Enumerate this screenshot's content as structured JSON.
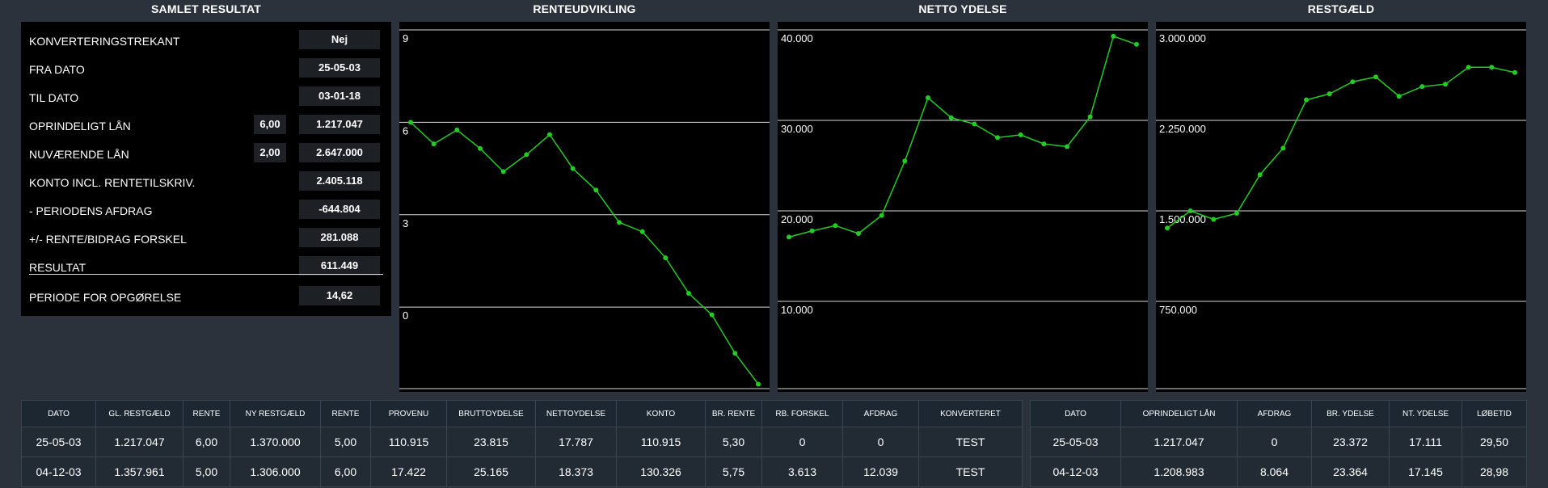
{
  "summary": {
    "title": "SAMLET RESULTAT",
    "rows": [
      {
        "label": "KONVERTERINGSTREKANT",
        "value": "Nej"
      },
      {
        "label": "FRA DATO",
        "value": "25-05-03"
      },
      {
        "label": "TIL DATO",
        "value": "03-01-18"
      },
      {
        "label": "OPRINDELIGT LÅN",
        "value": "1.217.047",
        "pct": "6,00"
      },
      {
        "label": "NUVÆRENDE LÅN",
        "value": "2.647.000",
        "pct": "2,00"
      },
      {
        "label": "KONTO INCL. RENTETILSKRIV.",
        "value": "2.405.118"
      },
      {
        "label": "- PERIODENS AFDRAG",
        "value": "-644.804"
      },
      {
        "label": "+/- RENTE/BIDRAG FORSKEL",
        "value": "281.088"
      },
      {
        "label": "RESULTAT",
        "value": "611.449"
      },
      {
        "label": "PERIODE FOR OPGØRELSE",
        "value": "14,62"
      }
    ]
  },
  "chart_data": [
    {
      "type": "line",
      "title": "RENTEUDVIKLING",
      "ylim": [
        -2.75,
        9
      ],
      "yticks": [
        {
          "v": 9,
          "label": "9"
        },
        {
          "v": 6,
          "label": "6"
        },
        {
          "v": 3,
          "label": "3"
        },
        {
          "v": 0,
          "label": "0"
        }
      ],
      "color": "#22cc22",
      "grid": true,
      "values": [
        6.0,
        5.3,
        5.75,
        5.15,
        4.4,
        4.95,
        5.6,
        4.5,
        3.8,
        2.75,
        2.45,
        1.6,
        0.45,
        -0.25,
        -1.5,
        -2.5
      ]
    },
    {
      "type": "line",
      "title": "NETTO YDELSE",
      "ylim": [
        0,
        40000
      ],
      "yticks": [
        {
          "v": 40000,
          "label": "40.000"
        },
        {
          "v": 30000,
          "label": "30.000"
        },
        {
          "v": 20000,
          "label": "20.000"
        },
        {
          "v": 10000,
          "label": "10.000"
        }
      ],
      "color": "#22cc22",
      "grid": true,
      "values": [
        17111,
        17787,
        18373,
        17500,
        19500,
        25500,
        32500,
        30300,
        29600,
        28100,
        28400,
        27400,
        27100,
        30400,
        39300,
        38400
      ]
    },
    {
      "type": "line",
      "title": "RESTGÆLD",
      "ylim": [
        0,
        3000000
      ],
      "yticks": [
        {
          "v": 3000000,
          "label": "3.000.000"
        },
        {
          "v": 2250000,
          "label": "2.250.000"
        },
        {
          "v": 1500000,
          "label": "1.500.000"
        },
        {
          "v": 750000,
          "label": "750.000"
        }
      ],
      "color": "#22cc22",
      "grid": true,
      "values": [
        1357961,
        1500000,
        1430000,
        1480000,
        1800000,
        2020000,
        2420000,
        2470000,
        2570000,
        2610000,
        2450000,
        2530000,
        2550000,
        2690000,
        2690000,
        2647000
      ]
    }
  ],
  "table1": {
    "headers": [
      "DATO",
      "GL. RESTGÆLD",
      "RENTE",
      "NY RESTGÆLD",
      "RENTE",
      "PROVENU",
      "BRUTTOYDELSE",
      "NETTOYDELSE",
      "KONTO",
      "BR. RENTE",
      "RB. FORSKEL",
      "AFDRAG",
      "KONVERTERET"
    ],
    "rows": [
      [
        "25-05-03",
        "1.217.047",
        "6,00",
        "1.370.000",
        "5,00",
        "110.915",
        "23.815",
        "17.787",
        "110.915",
        "5,30",
        "0",
        "0",
        "TEST"
      ],
      [
        "04-12-03",
        "1.357.961",
        "5,00",
        "1.306.000",
        "6,00",
        "17.422",
        "25.165",
        "18.373",
        "130.326",
        "5,75",
        "3.613",
        "12.039",
        "TEST"
      ]
    ]
  },
  "table2": {
    "headers": [
      "DATO",
      "OPRINDELIGT LÅN",
      "AFDRAG",
      "BR. YDELSE",
      "NT. YDELSE",
      "LØBETID"
    ],
    "rows": [
      [
        "25-05-03",
        "1.217.047",
        "0",
        "23.372",
        "17.111",
        "29,50"
      ],
      [
        "04-12-03",
        "1.208.983",
        "8.064",
        "23.364",
        "17.145",
        "28,98"
      ]
    ]
  }
}
